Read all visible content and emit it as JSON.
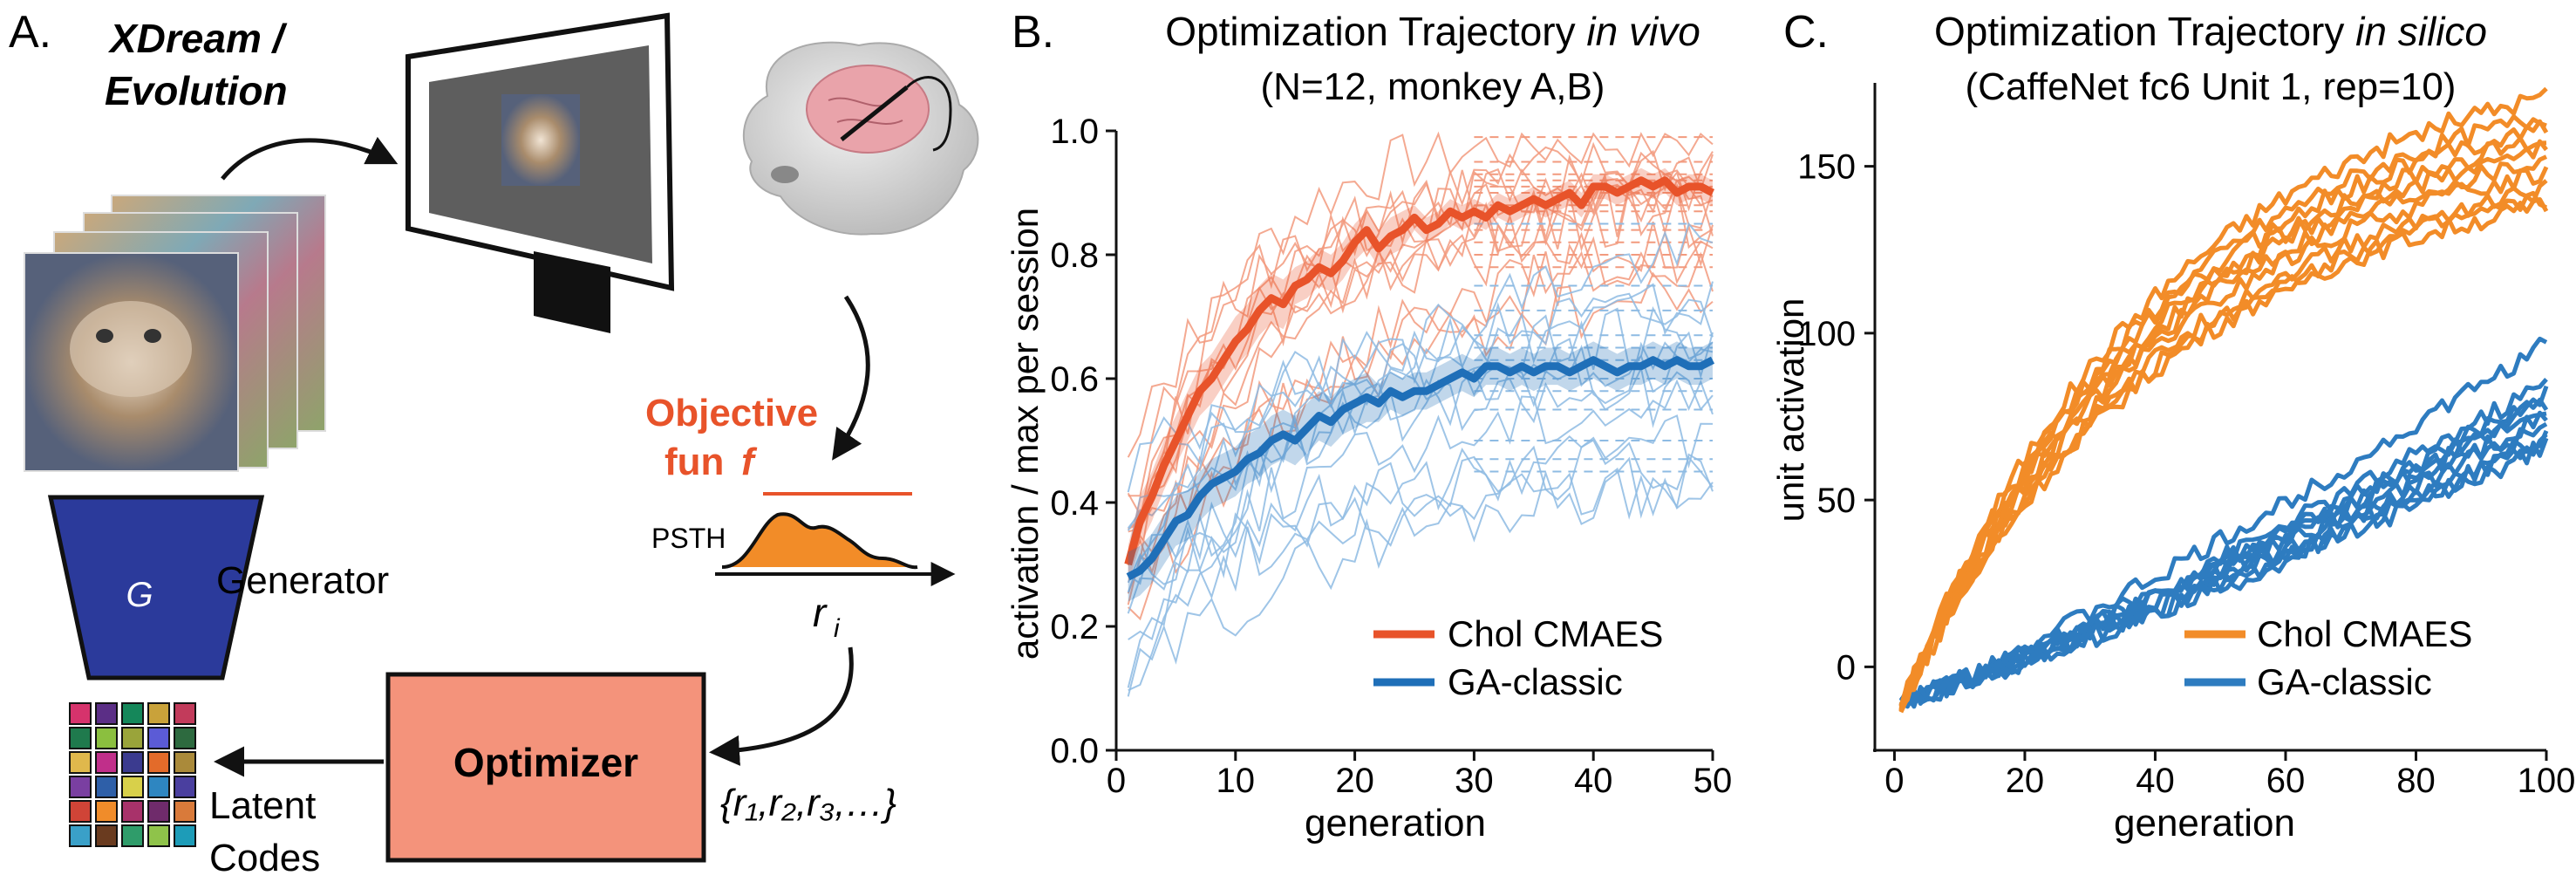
{
  "panelA": {
    "letter": "A.",
    "title_line1": "XDream /",
    "title_line2": "Evolution",
    "objective_line1": "Objective",
    "objective_line2_word": "fun",
    "objective_line2_symbol": "f",
    "psth_label": "PSTH",
    "response_symbol": "r",
    "response_subscript": "i",
    "generator_symbol": "G",
    "generator_label": "Generator",
    "optimizer_label": "Optimizer",
    "scores_label": "{r₁,r₂,r₃,…}",
    "latent_line1": "Latent",
    "latent_line2": "Codes",
    "colors": {
      "accent": "#E8532A",
      "generator": "#2B3A9B",
      "optimizer": "#F4937B",
      "monitor_screen": "#5E5E5E"
    }
  },
  "chart_data": [
    {
      "type": "line",
      "letter": "B.",
      "title_line1_plain": "Optimization Trajectory ",
      "title_line1_italic": "in vivo",
      "title_line2": "(N=12, monkey A,B)",
      "xlabel": "generation",
      "ylabel": "activation / max per session",
      "xlim": [
        0,
        50
      ],
      "ylim": [
        0,
        1
      ],
      "xticks": [
        0,
        10,
        20,
        30,
        40,
        50
      ],
      "yticks": [
        0.0,
        0.2,
        0.4,
        0.6,
        0.8,
        1.0
      ],
      "ytick_labels": [
        "0.0",
        "0.2",
        "0.4",
        "0.6",
        "0.8",
        "1.0"
      ],
      "legend_position": "lower-right",
      "series": [
        {
          "name": "Chol CMAES",
          "color": "#E8532A",
          "x": [
            1,
            2,
            3,
            4,
            5,
            6,
            7,
            8,
            9,
            10,
            11,
            12,
            13,
            14,
            15,
            16,
            17,
            18,
            19,
            20,
            21,
            22,
            23,
            24,
            25,
            26,
            27,
            28,
            29,
            30,
            31,
            32,
            33,
            34,
            35,
            36,
            37,
            38,
            39,
            40,
            41,
            42,
            43,
            44,
            45,
            46,
            47,
            48,
            49,
            50
          ],
          "mean": [
            0.3,
            0.37,
            0.41,
            0.46,
            0.5,
            0.54,
            0.58,
            0.6,
            0.63,
            0.66,
            0.68,
            0.71,
            0.73,
            0.72,
            0.75,
            0.76,
            0.78,
            0.77,
            0.79,
            0.82,
            0.84,
            0.81,
            0.83,
            0.84,
            0.86,
            0.84,
            0.85,
            0.87,
            0.86,
            0.87,
            0.86,
            0.88,
            0.87,
            0.88,
            0.89,
            0.88,
            0.89,
            0.9,
            0.88,
            0.91,
            0.91,
            0.9,
            0.91,
            0.92,
            0.91,
            0.92,
            0.9,
            0.91,
            0.91,
            0.9
          ],
          "sem": [
            0.03,
            0.04,
            0.04,
            0.04,
            0.04,
            0.04,
            0.04,
            0.04,
            0.04,
            0.04,
            0.04,
            0.04,
            0.04,
            0.04,
            0.03,
            0.03,
            0.03,
            0.03,
            0.03,
            0.03,
            0.03,
            0.03,
            0.03,
            0.03,
            0.02,
            0.02,
            0.02,
            0.02,
            0.02,
            0.02,
            0.02,
            0.02,
            0.02,
            0.02,
            0.02,
            0.02,
            0.02,
            0.02,
            0.02,
            0.02,
            0.02,
            0.02,
            0.02,
            0.02,
            0.02,
            0.02,
            0.02,
            0.02,
            0.02,
            0.02
          ]
        },
        {
          "name": "GA-classic",
          "color": "#1F6FB8",
          "x": [
            1,
            2,
            3,
            4,
            5,
            6,
            7,
            8,
            9,
            10,
            11,
            12,
            13,
            14,
            15,
            16,
            17,
            18,
            19,
            20,
            21,
            22,
            23,
            24,
            25,
            26,
            27,
            28,
            29,
            30,
            31,
            32,
            33,
            34,
            35,
            36,
            37,
            38,
            39,
            40,
            41,
            42,
            43,
            44,
            45,
            46,
            47,
            48,
            49,
            50
          ],
          "mean": [
            0.28,
            0.29,
            0.31,
            0.34,
            0.37,
            0.38,
            0.41,
            0.43,
            0.44,
            0.45,
            0.47,
            0.48,
            0.5,
            0.51,
            0.5,
            0.52,
            0.54,
            0.53,
            0.55,
            0.56,
            0.57,
            0.56,
            0.58,
            0.57,
            0.58,
            0.58,
            0.59,
            0.6,
            0.61,
            0.6,
            0.62,
            0.62,
            0.61,
            0.62,
            0.61,
            0.62,
            0.62,
            0.61,
            0.62,
            0.63,
            0.62,
            0.61,
            0.62,
            0.62,
            0.63,
            0.62,
            0.63,
            0.62,
            0.62,
            0.63
          ],
          "sem": [
            0.04,
            0.04,
            0.04,
            0.04,
            0.04,
            0.04,
            0.04,
            0.04,
            0.04,
            0.04,
            0.04,
            0.04,
            0.04,
            0.04,
            0.04,
            0.04,
            0.04,
            0.04,
            0.04,
            0.04,
            0.04,
            0.03,
            0.03,
            0.03,
            0.03,
            0.03,
            0.03,
            0.03,
            0.03,
            0.03,
            0.03,
            0.03,
            0.03,
            0.03,
            0.03,
            0.03,
            0.03,
            0.03,
            0.03,
            0.03,
            0.03,
            0.03,
            0.03,
            0.03,
            0.03,
            0.03,
            0.03,
            0.03,
            0.03,
            0.03
          ]
        }
      ],
      "individual_sessions": {
        "Chol CMAES": [
          {
            "start": 0.3,
            "final": 0.99,
            "rate": 0.12
          },
          {
            "start": 0.25,
            "final": 0.95,
            "rate": 0.1
          },
          {
            "start": 0.35,
            "final": 0.93,
            "rate": 0.09
          },
          {
            "start": 0.4,
            "final": 0.92,
            "rate": 0.11
          },
          {
            "start": 0.22,
            "final": 0.91,
            "rate": 0.08
          },
          {
            "start": 0.28,
            "final": 0.9,
            "rate": 0.07
          },
          {
            "start": 0.45,
            "final": 0.88,
            "rate": 0.13
          },
          {
            "start": 0.33,
            "final": 0.87,
            "rate": 0.09
          },
          {
            "start": 0.2,
            "final": 0.84,
            "rate": 0.06
          },
          {
            "start": 0.38,
            "final": 0.82,
            "rate": 0.1
          },
          {
            "start": 0.26,
            "final": 0.8,
            "rate": 0.07
          },
          {
            "start": 0.31,
            "final": 0.78,
            "rate": 0.05
          }
        ],
        "GA-classic": [
          {
            "start": 0.05,
            "final": 0.85,
            "rate": 0.06
          },
          {
            "start": 0.15,
            "final": 0.75,
            "rate": 0.06
          },
          {
            "start": 0.3,
            "final": 0.71,
            "rate": 0.08
          },
          {
            "start": 0.4,
            "final": 0.67,
            "rate": 0.09
          },
          {
            "start": 0.35,
            "final": 0.65,
            "rate": 0.05
          },
          {
            "start": 0.45,
            "final": 0.63,
            "rate": 0.1
          },
          {
            "start": 0.25,
            "final": 0.6,
            "rate": 0.05
          },
          {
            "start": 0.38,
            "final": 0.58,
            "rate": 0.07
          },
          {
            "start": 0.2,
            "final": 0.55,
            "rate": 0.04
          },
          {
            "start": 0.3,
            "final": 0.5,
            "rate": 0.04
          },
          {
            "start": 0.1,
            "final": 0.47,
            "rate": 0.05
          },
          {
            "start": 0.28,
            "final": 0.45,
            "rate": 0.04
          }
        ]
      }
    },
    {
      "type": "line",
      "letter": "C.",
      "title_line1_plain": "Optimization Trajectory ",
      "title_line1_italic": "in silico",
      "title_line2": "(CaffeNet  fc6  Unit 1, rep=10)",
      "xlabel": "generation",
      "ylabel": "unit activation",
      "xlim": [
        -3,
        100
      ],
      "ylim": [
        -25,
        175
      ],
      "xticks": [
        0,
        20,
        40,
        60,
        80,
        100
      ],
      "yticks": [
        0,
        50,
        100,
        150
      ],
      "legend_position": "lower-right",
      "series": [
        {
          "name": "Chol CMAES",
          "color": "#F28C28",
          "reps": 10,
          "start": -12,
          "final_values": [
            171,
            165,
            162,
            158,
            155,
            152,
            148,
            143,
            140,
            138
          ]
        },
        {
          "name": "GA-classic",
          "color": "#2E7CC0",
          "reps": 10,
          "start": -10,
          "final_values": [
            97,
            85,
            82,
            80,
            78,
            75,
            73,
            70,
            68,
            66
          ]
        }
      ]
    }
  ]
}
